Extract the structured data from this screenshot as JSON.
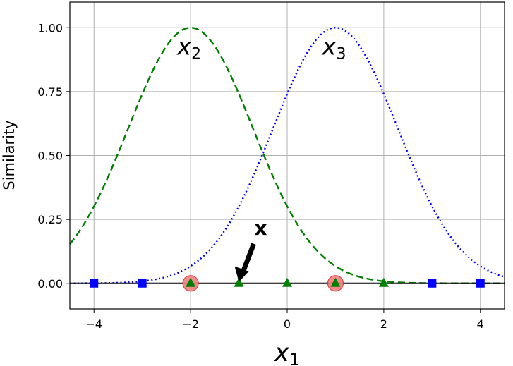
{
  "chart_data": {
    "type": "line",
    "xlabel": "x",
    "xlabel_sub": "1",
    "ylabel": "Similarity",
    "xlim": [
      -4.5,
      4.5
    ],
    "ylim": [
      -0.1,
      1.1
    ],
    "grid": true,
    "x_ticks": [
      -4,
      -2,
      0,
      2,
      4
    ],
    "x_tick_labels": [
      "−4",
      "−2",
      "0",
      "2",
      "4"
    ],
    "y_ticks": [
      0.0,
      0.25,
      0.5,
      0.75,
      1.0
    ],
    "y_tick_labels": [
      "0.00",
      "0.25",
      "0.50",
      "0.75",
      "1.00"
    ],
    "series": [
      {
        "label": "x",
        "label_sub": "2",
        "center": -2,
        "gamma": 0.3,
        "style": "dashed",
        "color": "#008000"
      },
      {
        "label": "x",
        "label_sub": "3",
        "center": 1,
        "gamma": 0.3,
        "style": "dotted",
        "color": "#0000ff"
      }
    ],
    "points": {
      "blue_squares": [
        -4,
        -3,
        3,
        4
      ],
      "green_triangles": [
        -2,
        -1,
        0,
        1,
        2
      ],
      "landmarks": [
        -2,
        1
      ]
    },
    "annotation": {
      "text": "x",
      "point": [
        -1,
        0
      ]
    },
    "colors": {
      "landmark_fill": "#f08080",
      "landmark_edge": "#e03030",
      "square": "#0000ff",
      "triangle": "#008000"
    }
  }
}
